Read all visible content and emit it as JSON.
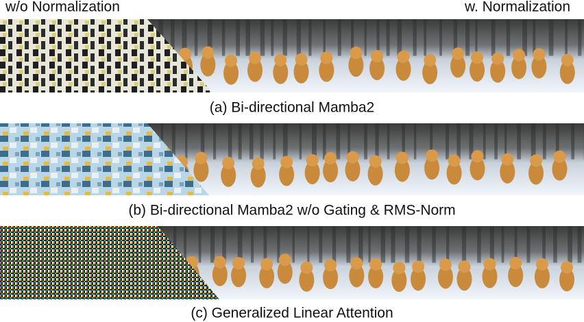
{
  "header": {
    "left_label": "w/o Normalization",
    "right_label": "w. Normalization"
  },
  "panels": [
    {
      "caption": "(a) Bi-directional Mamba2"
    },
    {
      "caption": "(b) Bi-directional Mamba2 w/o Gating & RMS-Norm"
    },
    {
      "caption": "(c) Generalized Linear Attention"
    }
  ]
}
